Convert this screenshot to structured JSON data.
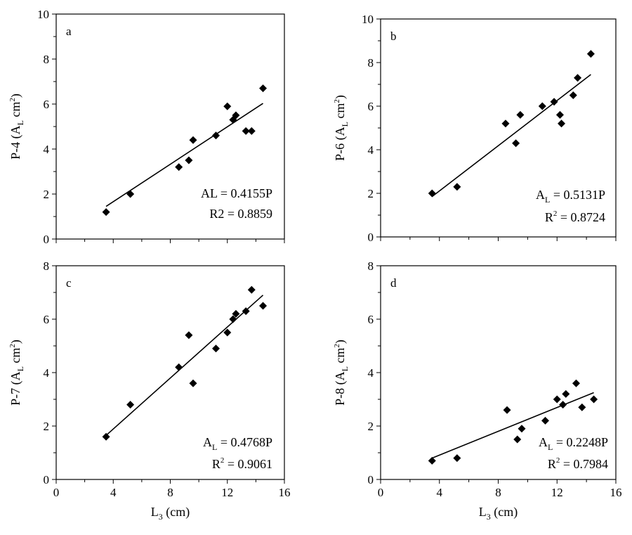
{
  "chart_data": [
    {
      "panel": "a",
      "type": "scatter",
      "ylabel": {
        "text": "P-4 (A",
        "sub": "L",
        "mid": " cm",
        "sup": "2",
        "end": ")"
      },
      "xlabel": {
        "text": "",
        "sub": "",
        "end": ""
      },
      "xlim": [
        0,
        16
      ],
      "ylim": [
        0,
        10
      ],
      "xticks": [],
      "yticks": [
        0,
        2,
        4,
        6,
        8,
        10
      ],
      "x": [
        3.5,
        5.2,
        8.6,
        9.3,
        9.6,
        11.2,
        12.0,
        12.4,
        12.6,
        13.3,
        13.7,
        14.5
      ],
      "y": [
        1.2,
        2.0,
        3.2,
        3.5,
        4.4,
        4.6,
        5.9,
        5.3,
        5.5,
        4.8,
        4.8,
        6.7
      ],
      "trendline": {
        "x": [
          3.5,
          14.5
        ],
        "y": [
          1.45,
          6.03
        ]
      },
      "equation": {
        "pre": "AL = 0.4155P",
        "sub": "",
        "post": ""
      },
      "r2": {
        "pre": "R2",
        "sup": "",
        "post": " = 0.8859"
      }
    },
    {
      "panel": "b",
      "type": "scatter",
      "ylabel": {
        "text": "P-6 (A",
        "sub": "L",
        "mid": " cm",
        "sup": "2",
        "end": ")"
      },
      "xlabel": {
        "text": "",
        "sub": "",
        "end": ""
      },
      "xlim": [
        0,
        16
      ],
      "ylim": [
        0,
        10
      ],
      "xticks": [],
      "yticks": [
        0,
        2,
        4,
        6,
        8,
        10
      ],
      "x": [
        3.5,
        5.2,
        8.5,
        9.2,
        9.5,
        11.0,
        11.8,
        12.2,
        12.3,
        13.1,
        13.4,
        14.3
      ],
      "y": [
        2.0,
        2.3,
        5.2,
        4.3,
        5.6,
        6.0,
        6.2,
        5.6,
        5.2,
        6.5,
        7.3,
        8.4
      ],
      "trendline": {
        "x": [
          3.5,
          14.3
        ],
        "y": [
          1.85,
          7.45
        ]
      },
      "equation": {
        "pre": "A",
        "sub": "L",
        "post": " = 0.5131P"
      },
      "r2": {
        "pre": "R",
        "sup": "2",
        "post": " = 0.8724"
      }
    },
    {
      "panel": "c",
      "type": "scatter",
      "ylabel": {
        "text": "P-7 (A",
        "sub": "L",
        "mid": " cm",
        "sup": "2",
        "end": ")"
      },
      "xlabel": {
        "text": "L",
        "sub": "3",
        "end": " (cm)"
      },
      "xlim": [
        0,
        16
      ],
      "ylim": [
        0,
        8
      ],
      "xticks": [
        0,
        4,
        8,
        12,
        16
      ],
      "yticks": [
        0,
        2,
        4,
        6,
        8
      ],
      "x": [
        3.5,
        5.2,
        8.6,
        9.3,
        9.6,
        11.2,
        12.0,
        12.4,
        12.6,
        13.3,
        13.7,
        14.5
      ],
      "y": [
        1.6,
        2.8,
        4.2,
        5.4,
        3.6,
        4.9,
        5.5,
        6.0,
        6.2,
        6.3,
        7.1,
        6.5
      ],
      "trendline": {
        "x": [
          3.5,
          14.5
        ],
        "y": [
          1.65,
          6.9
        ]
      },
      "equation": {
        "pre": "A",
        "sub": "L",
        "post": " = 0.4768P"
      },
      "r2": {
        "pre": "R",
        "sup": "2",
        "post": " = 0.9061"
      }
    },
    {
      "panel": "d",
      "type": "scatter",
      "ylabel": {
        "text": "P-8 (A",
        "sub": "L",
        "mid": " cm",
        "sup": "2",
        "end": ")"
      },
      "xlabel": {
        "text": "L",
        "sub": "3",
        "end": " (cm)"
      },
      "xlim": [
        0,
        16
      ],
      "ylim": [
        0,
        8
      ],
      "xticks": [
        0,
        4,
        8,
        12,
        16
      ],
      "yticks": [
        0,
        2,
        4,
        6,
        8
      ],
      "x": [
        3.5,
        5.2,
        8.6,
        9.3,
        9.6,
        11.2,
        12.0,
        12.4,
        12.6,
        13.3,
        13.7,
        14.5
      ],
      "y": [
        0.7,
        0.8,
        2.6,
        1.5,
        1.9,
        2.2,
        3.0,
        2.8,
        3.2,
        3.6,
        2.7,
        3.0
      ],
      "trendline": {
        "x": [
          3.5,
          14.5
        ],
        "y": [
          0.8,
          3.25
        ]
      },
      "equation": {
        "pre": "A",
        "sub": "L",
        "post": " = 0.2248P"
      },
      "r2": {
        "pre": "R",
        "sup": "2",
        "post": " = 0.7984"
      }
    }
  ]
}
